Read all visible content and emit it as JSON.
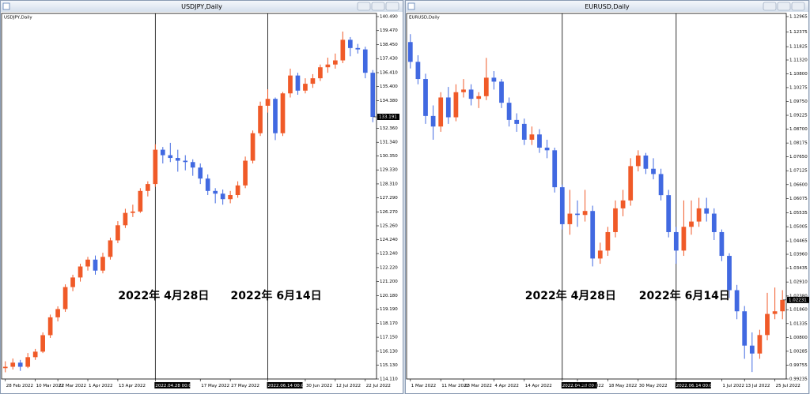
{
  "chart_data": [
    {
      "type": "candlestick",
      "title": "USDJPY,Daily",
      "ylim": [
        114.11,
        140.49
      ],
      "yticks": [
        {
          "value": 140.49,
          "label": "140.490"
        },
        {
          "value": 139.47,
          "label": "139.470"
        },
        {
          "value": 138.45,
          "label": "138.450"
        },
        {
          "value": 137.43,
          "label": "137.430"
        },
        {
          "value": 136.41,
          "label": "136.410"
        },
        {
          "value": 135.4,
          "label": "135.400"
        },
        {
          "value": 134.38,
          "label": "134.380"
        },
        {
          "value": 132.36,
          "label": "132.360"
        },
        {
          "value": 131.34,
          "label": "131.340"
        },
        {
          "value": 130.35,
          "label": "130.350"
        },
        {
          "value": 129.33,
          "label": "129.330"
        },
        {
          "value": 128.31,
          "label": "128.310"
        },
        {
          "value": 127.29,
          "label": "127.290"
        },
        {
          "value": 126.27,
          "label": "126.270"
        },
        {
          "value": 125.26,
          "label": "125.260"
        },
        {
          "value": 124.24,
          "label": "124.240"
        },
        {
          "value": 123.24,
          "label": "123.240"
        },
        {
          "value": 122.22,
          "label": "122.220"
        },
        {
          "value": 121.2,
          "label": "121.200"
        },
        {
          "value": 120.18,
          "label": "120.180"
        },
        {
          "value": 119.19,
          "label": "119.190"
        },
        {
          "value": 118.17,
          "label": "118.170"
        },
        {
          "value": 117.15,
          "label": "117.150"
        },
        {
          "value": 116.13,
          "label": "116.130"
        },
        {
          "value": 115.13,
          "label": "115.130"
        },
        {
          "value": 114.11,
          "label": "114.110"
        }
      ],
      "categories": [
        "28 Feb 2022",
        null,
        null,
        null,
        "10 Mar 2022",
        null,
        null,
        "22 Mar 2022",
        null,
        null,
        null,
        "1 Apr 2022",
        null,
        null,
        null,
        "13 Apr 2022",
        null,
        null,
        null,
        null,
        "2022.04.28 00:00",
        null,
        null,
        null,
        null,
        null,
        "17 May 2022",
        null,
        null,
        null,
        "27 May 2022",
        null,
        null,
        null,
        null,
        "2022.06.14 00:00",
        null,
        null,
        null,
        null,
        "30 Jun 2022",
        null,
        null,
        null,
        "12 Jul 2022",
        null,
        null,
        null,
        "22 Jul 2022",
        null
      ],
      "up_color": "#f05a28",
      "down_color": "#4169e1",
      "ohlc": [
        [
          114.9,
          115.4,
          114.6,
          115.0
        ],
        [
          115.0,
          115.6,
          114.8,
          115.3
        ],
        [
          115.3,
          115.5,
          114.7,
          115.0
        ],
        [
          115.0,
          116.0,
          114.9,
          115.7
        ],
        [
          115.7,
          116.3,
          115.5,
          116.1
        ],
        [
          116.1,
          117.5,
          116.0,
          117.3
        ],
        [
          117.3,
          118.8,
          117.1,
          118.6
        ],
        [
          118.6,
          119.4,
          118.3,
          119.2
        ],
        [
          119.2,
          121.0,
          119.0,
          120.8
        ],
        [
          120.8,
          121.7,
          120.5,
          121.5
        ],
        [
          121.5,
          122.5,
          121.2,
          122.3
        ],
        [
          122.3,
          123.0,
          122.0,
          122.8
        ],
        [
          122.8,
          123.1,
          121.7,
          122.0
        ],
        [
          122.0,
          123.3,
          121.8,
          123.0
        ],
        [
          123.0,
          124.4,
          122.8,
          124.2
        ],
        [
          124.2,
          125.6,
          124.0,
          125.3
        ],
        [
          125.3,
          126.5,
          125.1,
          126.2
        ],
        [
          126.2,
          126.8,
          125.9,
          126.3
        ],
        [
          126.3,
          128.0,
          126.2,
          127.8
        ],
        [
          127.8,
          128.5,
          127.4,
          128.3
        ],
        [
          128.3,
          131.2,
          128.1,
          130.8
        ],
        [
          130.8,
          131.0,
          129.8,
          130.4
        ],
        [
          130.4,
          131.3,
          129.9,
          130.2
        ],
        [
          130.2,
          130.8,
          129.2,
          130.0
        ],
        [
          130.0,
          130.4,
          129.3,
          129.9
        ],
        [
          129.9,
          130.1,
          128.9,
          129.5
        ],
        [
          129.5,
          129.8,
          128.3,
          128.7
        ],
        [
          128.7,
          129.0,
          127.5,
          127.8
        ],
        [
          127.8,
          128.0,
          126.9,
          127.6
        ],
        [
          127.6,
          127.9,
          126.8,
          127.2
        ],
        [
          127.2,
          127.8,
          126.9,
          127.5
        ],
        [
          127.5,
          128.5,
          127.3,
          128.2
        ],
        [
          128.2,
          130.3,
          128.0,
          130.0
        ],
        [
          130.0,
          132.2,
          129.8,
          132.0
        ],
        [
          132.0,
          134.3,
          131.8,
          134.0
        ],
        [
          134.0,
          135.2,
          133.5,
          134.5
        ],
        [
          134.5,
          134.6,
          131.5,
          132.0
        ],
        [
          132.0,
          135.0,
          131.8,
          134.9
        ],
        [
          134.9,
          136.7,
          134.6,
          136.2
        ],
        [
          136.2,
          136.4,
          134.8,
          135.1
        ],
        [
          135.1,
          136.0,
          134.9,
          135.6
        ],
        [
          135.6,
          136.3,
          135.3,
          136.0
        ],
        [
          136.0,
          137.0,
          135.8,
          136.8
        ],
        [
          136.8,
          137.5,
          136.4,
          137.0
        ],
        [
          137.0,
          137.8,
          136.7,
          137.3
        ],
        [
          137.3,
          139.4,
          137.1,
          138.8
        ],
        [
          138.8,
          139.0,
          137.6,
          138.2
        ],
        [
          138.2,
          138.5,
          137.8,
          138.1
        ],
        [
          138.1,
          138.3,
          136.0,
          136.4
        ],
        [
          136.4,
          136.6,
          132.8,
          133.191
        ]
      ],
      "current_price": 133.191,
      "annotations": [
        "2022年 4月28日",
        "2022年 6月14日"
      ]
    },
    {
      "type": "candlestick",
      "title": "EURUSD,Daily",
      "ylim": [
        0.99235,
        1.12965
      ],
      "yticks": [
        1.12965,
        1.12375,
        1.11825,
        {
          "value": 1.1132,
          "label": "1.11320"
        },
        {
          "value": 1.108,
          "label": "1.10800"
        },
        1.10275,
        {
          "value": 1.0975,
          "label": "1.09750"
        },
        1.09225,
        {
          "value": 1.087,
          "label": "1.08700"
        },
        1.08175,
        {
          "value": 1.0765,
          "label": "1.07650"
        },
        1.07125,
        {
          "value": 1.066,
          "label": "1.06600"
        },
        1.06075,
        1.05535,
        1.05005,
        1.04465,
        {
          "value": 1.0396,
          "label": "1.03960"
        },
        1.03435,
        {
          "value": 1.0291,
          "label": "1.02910"
        },
        {
          "value": 1.0238,
          "label": "1.02380"
        },
        {
          "value": 1.0186,
          "label": "1.01860"
        },
        1.01335,
        {
          "value": 1.008,
          "label": "1.00800"
        },
        1.00285,
        0.99755,
        0.99235
      ],
      "categories": [
        "1 Mar 2022",
        null,
        null,
        null,
        "11 Mar 2022",
        null,
        null,
        "23 Mar 2022",
        null,
        null,
        null,
        "4 Apr 2022",
        null,
        null,
        null,
        "14 Apr 2022",
        null,
        null,
        null,
        null,
        "2022.04.28 00:00",
        null,
        "6 May 2022",
        null,
        null,
        null,
        "18 May 2022",
        null,
        null,
        null,
        "30 May 2022",
        null,
        null,
        null,
        null,
        "2022.06.14 00:00",
        null,
        null,
        null,
        null,
        null,
        "1 Jul 2022",
        null,
        null,
        "13 Jul 2022",
        null,
        null,
        null,
        "25 Jul 2022",
        null
      ],
      "up_color": "#f05a28",
      "down_color": "#4169e1",
      "ohlc": [
        [
          1.12,
          1.123,
          1.11,
          1.1125
        ],
        [
          1.1125,
          1.115,
          1.104,
          1.106
        ],
        [
          1.106,
          1.108,
          1.089,
          1.092
        ],
        [
          1.092,
          1.096,
          1.083,
          1.088
        ],
        [
          1.088,
          1.101,
          1.086,
          1.099
        ],
        [
          1.099,
          1.103,
          1.089,
          1.0915
        ],
        [
          1.0915,
          1.104,
          1.09,
          1.101
        ],
        [
          1.101,
          1.106,
          1.099,
          1.102
        ],
        [
          1.102,
          1.104,
          1.096,
          1.0985
        ],
        [
          1.0985,
          1.101,
          1.095,
          1.0995
        ],
        [
          1.0995,
          1.114,
          1.098,
          1.1065
        ],
        [
          1.1065,
          1.109,
          1.102,
          1.105
        ],
        [
          1.105,
          1.106,
          1.095,
          1.097
        ],
        [
          1.097,
          1.099,
          1.088,
          1.0905
        ],
        [
          1.0905,
          1.093,
          1.086,
          1.089
        ],
        [
          1.089,
          1.091,
          1.081,
          1.083
        ],
        [
          1.083,
          1.088,
          1.081,
          1.085
        ],
        [
          1.085,
          1.087,
          1.078,
          1.08
        ],
        [
          1.08,
          1.083,
          1.076,
          1.079
        ],
        [
          1.079,
          1.08,
          1.063,
          1.065
        ],
        [
          1.065,
          1.066,
          1.049,
          1.051
        ],
        [
          1.051,
          1.064,
          1.047,
          1.055
        ],
        [
          1.055,
          1.06,
          1.05,
          1.0545
        ],
        [
          1.0545,
          1.064,
          1.052,
          1.056
        ],
        [
          1.056,
          1.058,
          1.035,
          1.038
        ],
        [
          1.038,
          1.044,
          1.036,
          1.041
        ],
        [
          1.041,
          1.05,
          1.039,
          1.048
        ],
        [
          1.048,
          1.06,
          1.046,
          1.057
        ],
        [
          1.057,
          1.064,
          1.054,
          1.06
        ],
        [
          1.06,
          1.076,
          1.058,
          1.073
        ],
        [
          1.073,
          1.079,
          1.071,
          1.077
        ],
        [
          1.077,
          1.078,
          1.07,
          1.072
        ],
        [
          1.072,
          1.076,
          1.068,
          1.07
        ],
        [
          1.07,
          1.072,
          1.06,
          1.062
        ],
        [
          1.062,
          1.064,
          1.046,
          1.048
        ],
        [
          1.048,
          1.05,
          1.036,
          1.041
        ],
        [
          1.041,
          1.06,
          1.039,
          1.05
        ],
        [
          1.05,
          1.06,
          1.047,
          1.052
        ],
        [
          1.052,
          1.061,
          1.05,
          1.057
        ],
        [
          1.057,
          1.061,
          1.052,
          1.055
        ],
        [
          1.055,
          1.057,
          1.045,
          1.048
        ],
        [
          1.048,
          1.049,
          1.037,
          1.039
        ],
        [
          1.039,
          1.04,
          1.023,
          1.026
        ],
        [
          1.026,
          1.028,
          1.015,
          1.018
        ],
        [
          1.018,
          1.02,
          1.0,
          1.005
        ],
        [
          1.005,
          1.01,
          0.995,
          1.002
        ],
        [
          1.002,
          1.011,
          1.0,
          1.009
        ],
        [
          1.009,
          1.025,
          1.007,
          1.017
        ],
        [
          1.017,
          1.027,
          1.015,
          1.018
        ],
        [
          1.018,
          1.026,
          1.015,
          1.02231
        ]
      ],
      "current_price": 1.02231,
      "annotations": [
        "2022年 4月28日",
        "2022年 6月14日"
      ]
    }
  ]
}
